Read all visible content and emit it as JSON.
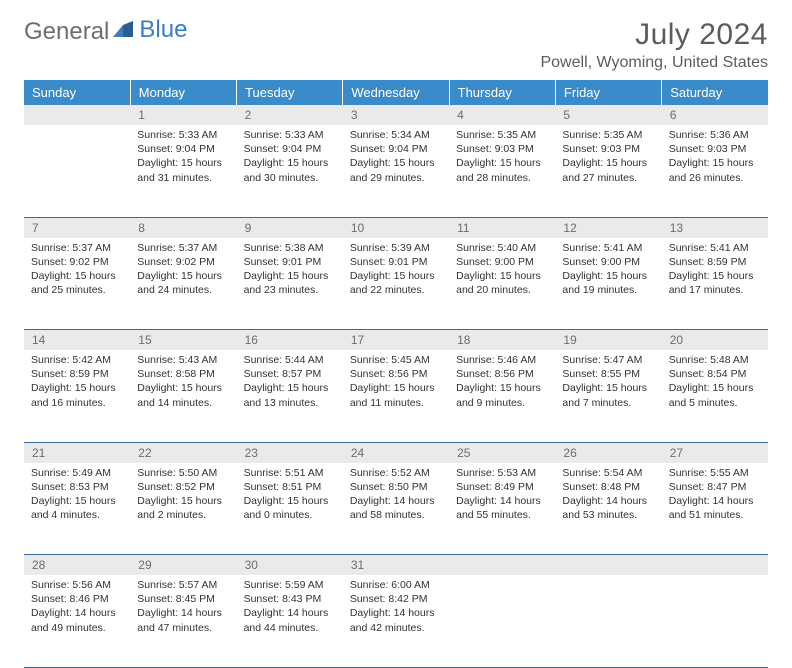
{
  "logo": {
    "part1": "General",
    "part2": "Blue"
  },
  "title": "July 2024",
  "location": "Powell, Wyoming, United States",
  "colors": {
    "header_bg": "#3a8bc9",
    "row_divider": "#3a6b9a",
    "daynum_bg": "#eaeaea",
    "text": "#333333",
    "muted": "#6d6d6d",
    "logo_blue": "#3a7dc4"
  },
  "day_headers": [
    "Sunday",
    "Monday",
    "Tuesday",
    "Wednesday",
    "Thursday",
    "Friday",
    "Saturday"
  ],
  "weeks": [
    {
      "nums": [
        "",
        "1",
        "2",
        "3",
        "4",
        "5",
        "6"
      ],
      "cells": [
        null,
        {
          "sunrise": "Sunrise: 5:33 AM",
          "sunset": "Sunset: 9:04 PM",
          "daylight": "Daylight: 15 hours and 31 minutes."
        },
        {
          "sunrise": "Sunrise: 5:33 AM",
          "sunset": "Sunset: 9:04 PM",
          "daylight": "Daylight: 15 hours and 30 minutes."
        },
        {
          "sunrise": "Sunrise: 5:34 AM",
          "sunset": "Sunset: 9:04 PM",
          "daylight": "Daylight: 15 hours and 29 minutes."
        },
        {
          "sunrise": "Sunrise: 5:35 AM",
          "sunset": "Sunset: 9:03 PM",
          "daylight": "Daylight: 15 hours and 28 minutes."
        },
        {
          "sunrise": "Sunrise: 5:35 AM",
          "sunset": "Sunset: 9:03 PM",
          "daylight": "Daylight: 15 hours and 27 minutes."
        },
        {
          "sunrise": "Sunrise: 5:36 AM",
          "sunset": "Sunset: 9:03 PM",
          "daylight": "Daylight: 15 hours and 26 minutes."
        }
      ]
    },
    {
      "nums": [
        "7",
        "8",
        "9",
        "10",
        "11",
        "12",
        "13"
      ],
      "cells": [
        {
          "sunrise": "Sunrise: 5:37 AM",
          "sunset": "Sunset: 9:02 PM",
          "daylight": "Daylight: 15 hours and 25 minutes."
        },
        {
          "sunrise": "Sunrise: 5:37 AM",
          "sunset": "Sunset: 9:02 PM",
          "daylight": "Daylight: 15 hours and 24 minutes."
        },
        {
          "sunrise": "Sunrise: 5:38 AM",
          "sunset": "Sunset: 9:01 PM",
          "daylight": "Daylight: 15 hours and 23 minutes."
        },
        {
          "sunrise": "Sunrise: 5:39 AM",
          "sunset": "Sunset: 9:01 PM",
          "daylight": "Daylight: 15 hours and 22 minutes."
        },
        {
          "sunrise": "Sunrise: 5:40 AM",
          "sunset": "Sunset: 9:00 PM",
          "daylight": "Daylight: 15 hours and 20 minutes."
        },
        {
          "sunrise": "Sunrise: 5:41 AM",
          "sunset": "Sunset: 9:00 PM",
          "daylight": "Daylight: 15 hours and 19 minutes."
        },
        {
          "sunrise": "Sunrise: 5:41 AM",
          "sunset": "Sunset: 8:59 PM",
          "daylight": "Daylight: 15 hours and 17 minutes."
        }
      ]
    },
    {
      "nums": [
        "14",
        "15",
        "16",
        "17",
        "18",
        "19",
        "20"
      ],
      "cells": [
        {
          "sunrise": "Sunrise: 5:42 AM",
          "sunset": "Sunset: 8:59 PM",
          "daylight": "Daylight: 15 hours and 16 minutes."
        },
        {
          "sunrise": "Sunrise: 5:43 AM",
          "sunset": "Sunset: 8:58 PM",
          "daylight": "Daylight: 15 hours and 14 minutes."
        },
        {
          "sunrise": "Sunrise: 5:44 AM",
          "sunset": "Sunset: 8:57 PM",
          "daylight": "Daylight: 15 hours and 13 minutes."
        },
        {
          "sunrise": "Sunrise: 5:45 AM",
          "sunset": "Sunset: 8:56 PM",
          "daylight": "Daylight: 15 hours and 11 minutes."
        },
        {
          "sunrise": "Sunrise: 5:46 AM",
          "sunset": "Sunset: 8:56 PM",
          "daylight": "Daylight: 15 hours and 9 minutes."
        },
        {
          "sunrise": "Sunrise: 5:47 AM",
          "sunset": "Sunset: 8:55 PM",
          "daylight": "Daylight: 15 hours and 7 minutes."
        },
        {
          "sunrise": "Sunrise: 5:48 AM",
          "sunset": "Sunset: 8:54 PM",
          "daylight": "Daylight: 15 hours and 5 minutes."
        }
      ]
    },
    {
      "nums": [
        "21",
        "22",
        "23",
        "24",
        "25",
        "26",
        "27"
      ],
      "cells": [
        {
          "sunrise": "Sunrise: 5:49 AM",
          "sunset": "Sunset: 8:53 PM",
          "daylight": "Daylight: 15 hours and 4 minutes."
        },
        {
          "sunrise": "Sunrise: 5:50 AM",
          "sunset": "Sunset: 8:52 PM",
          "daylight": "Daylight: 15 hours and 2 minutes."
        },
        {
          "sunrise": "Sunrise: 5:51 AM",
          "sunset": "Sunset: 8:51 PM",
          "daylight": "Daylight: 15 hours and 0 minutes."
        },
        {
          "sunrise": "Sunrise: 5:52 AM",
          "sunset": "Sunset: 8:50 PM",
          "daylight": "Daylight: 14 hours and 58 minutes."
        },
        {
          "sunrise": "Sunrise: 5:53 AM",
          "sunset": "Sunset: 8:49 PM",
          "daylight": "Daylight: 14 hours and 55 minutes."
        },
        {
          "sunrise": "Sunrise: 5:54 AM",
          "sunset": "Sunset: 8:48 PM",
          "daylight": "Daylight: 14 hours and 53 minutes."
        },
        {
          "sunrise": "Sunrise: 5:55 AM",
          "sunset": "Sunset: 8:47 PM",
          "daylight": "Daylight: 14 hours and 51 minutes."
        }
      ]
    },
    {
      "nums": [
        "28",
        "29",
        "30",
        "31",
        "",
        "",
        ""
      ],
      "cells": [
        {
          "sunrise": "Sunrise: 5:56 AM",
          "sunset": "Sunset: 8:46 PM",
          "daylight": "Daylight: 14 hours and 49 minutes."
        },
        {
          "sunrise": "Sunrise: 5:57 AM",
          "sunset": "Sunset: 8:45 PM",
          "daylight": "Daylight: 14 hours and 47 minutes."
        },
        {
          "sunrise": "Sunrise: 5:59 AM",
          "sunset": "Sunset: 8:43 PM",
          "daylight": "Daylight: 14 hours and 44 minutes."
        },
        {
          "sunrise": "Sunrise: 6:00 AM",
          "sunset": "Sunset: 8:42 PM",
          "daylight": "Daylight: 14 hours and 42 minutes."
        },
        null,
        null,
        null
      ]
    }
  ]
}
